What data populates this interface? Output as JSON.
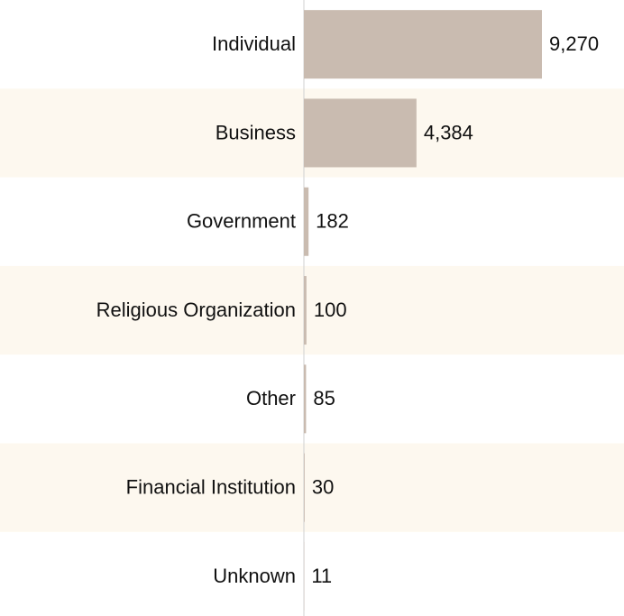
{
  "chart_data": {
    "type": "bar",
    "orientation": "horizontal",
    "categories": [
      "Individual",
      "Business",
      "Government",
      "Religious Organization",
      "Other",
      "Financial Institution",
      "Unknown"
    ],
    "values": [
      9270,
      4384,
      182,
      100,
      85,
      30,
      11
    ],
    "value_labels": [
      "9,270",
      "4,384",
      "182",
      "100",
      "85",
      "30",
      "11"
    ],
    "color": "#c9bbb0"
  }
}
